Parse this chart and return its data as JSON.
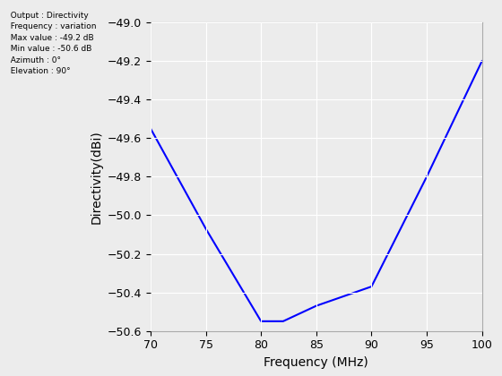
{
  "x": [
    70,
    75,
    80,
    82,
    85,
    90,
    95,
    100
  ],
  "y": [
    -49.55,
    -50.07,
    -50.55,
    -50.55,
    -50.47,
    -50.37,
    -49.8,
    -49.2
  ],
  "line_color": "#0000FF",
  "line_width": 1.5,
  "xlabel": "Frequency (MHz)",
  "ylabel": "Directivity(dBi)",
  "xlim": [
    70,
    100
  ],
  "ylim": [
    -50.6,
    -49.0
  ],
  "xticks": [
    70,
    75,
    80,
    85,
    90,
    95,
    100
  ],
  "yticks": [
    -50.6,
    -50.4,
    -50.2,
    -50.0,
    -49.8,
    -49.6,
    -49.4,
    -49.2,
    -49.0
  ],
  "grid": true,
  "background_color": "#ececec",
  "axes_background": "#ececec",
  "annotation_lines": [
    "  Output : Directivity",
    "  Frequency : variation",
    "  Max value : -49.2 dB",
    "  Min value : -50.6 dB",
    "  Azimuth : 0°",
    "  Elevation : 90°"
  ],
  "annotation_fontsize": 6.5,
  "xlabel_fontsize": 10,
  "ylabel_fontsize": 10,
  "tick_fontsize": 9,
  "grid_color": "#ffffff",
  "grid_linewidth": 0.8,
  "spine_color": "#aaaaaa"
}
